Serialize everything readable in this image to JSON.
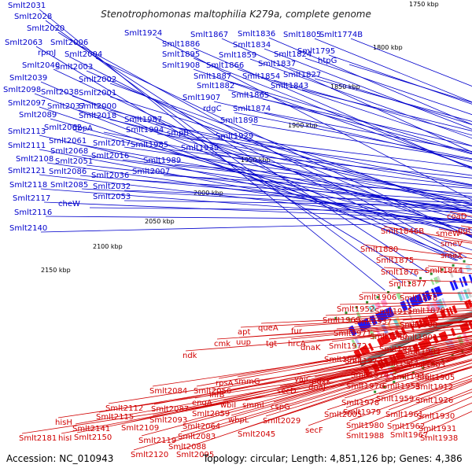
{
  "title": "Stenotrophomonas maltophilia K279a, complete genome",
  "footer": {
    "accession": "Accession: NC_010943",
    "stats": "Topology: circular; Length: 4,851,126 bp; Genes: 4,386"
  },
  "colors": {
    "forward_label": "#0000cc",
    "reverse_label": "#d00000",
    "forward_feature": "#1a1aff",
    "reverse_feature": "#ee1111",
    "backbone": "#7a7a7a",
    "tick_marker": "#2a8a2a"
  },
  "ticks": [
    "1750 kbp",
    "1800 kbp",
    "1850 kbp",
    "1900 kbp",
    "1950 kbp",
    "2000 kbp",
    "2050 kbp",
    "2100 kbp",
    "2150 kbp"
  ],
  "top_labels": [
    "Smlt2031",
    "Smlt2028",
    "Smlt2020",
    "Smlt2063",
    "Smlt2006",
    "rpmJ",
    "Smlt2004",
    "Smlt2040",
    "Smlt2003",
    "Smlt2039",
    "Smlt2002",
    "Smlt2098",
    "Smlt2038",
    "Smlt2001",
    "Smlt2097",
    "Smlt2037",
    "Smlt2000",
    "Smlt2089",
    "Smlt2018",
    "Smlt2062",
    "dbpA",
    "Smlt2113",
    "Smlt2061",
    "Smlt2017",
    "Smlt2111",
    "Smlt2068",
    "Smlt2016",
    "Smlt2108",
    "Smlt2051",
    "Smlt2121",
    "Smlt2086",
    "Smlt2036",
    "Smlt2118",
    "Smlt2085",
    "Smlt2032",
    "Smlt2117",
    "cheW",
    "Smlt2053",
    "Smlt2116",
    "Smlt2140",
    "Smlt1924",
    "Smlt1867",
    "Smlt1836",
    "Smlt1805",
    "Smlt1774B",
    "Smlt1886",
    "Smlt1834",
    "Smlt1895",
    "Smlt1859",
    "Smlt1824",
    "Smlt1795",
    "Smlt1908",
    "Smlt1866",
    "Smlt1837",
    "htpG",
    "Smlt1887",
    "Smlt1854",
    "Smlt1827",
    "Smlt1882",
    "Smlt1843",
    "Smlt1907",
    "Smlt1865",
    "rdgC",
    "Smlt1874",
    "Smlt1898",
    "Smlt1987",
    "Smlt1994",
    "smpB",
    "Smlt1985",
    "Smlt1929",
    "Smlt1939",
    "Smlt1989",
    "Smlt2007"
  ],
  "bottom_labels": [
    "coaD",
    "ggt",
    "Smlt1846B",
    "smeW",
    "smeV",
    "smeX",
    "Smlt1880",
    "Smlt1875",
    "Smlt1844",
    "Smlt1876",
    "Smlt1877",
    "Smlt1906",
    "Smlt1878",
    "Smlt1952",
    "Smlt1879",
    "Smlt1911",
    "Smlt1969",
    "Smlt1937",
    "Smlt1900",
    "Smlt1971",
    "Smlt1940",
    "Smlt1901",
    "Smlt1972",
    "Smlt1941",
    "Smlt1902",
    "fur",
    "hrcA",
    "Smlt1973",
    "Smlt1944",
    "Smlt1903",
    "apt",
    "queA",
    "Smlt1991",
    "Smlt1974",
    "Smlt1905",
    "uup",
    "tgt",
    "dnaK",
    "Smlt1946",
    "cmk",
    "Smlt1976",
    "Smlt1953",
    "Smlt1912",
    "ndk",
    "rpsA",
    "smmG",
    "yajC",
    "dnaJ",
    "Smlt1978",
    "Smlt1959",
    "Smlt1926",
    "ihfB",
    "secD",
    "pdxK",
    "engA",
    "wbiI",
    "smmI",
    "cspG",
    "Smlt2005",
    "Smlt1979",
    "Smlt1961",
    "Smlt1930",
    "Smlt2084",
    "Smlt2056",
    "wbpL",
    "Smlt2029",
    "Smlt1980",
    "Smlt1962",
    "Smlt1931",
    "Smlt2112",
    "Smlt2087",
    "Smlt2059",
    "secF",
    "Smlt1988",
    "Smlt1967",
    "Smlt1938",
    "hisH",
    "Smlt2115",
    "Smlt2093",
    "Smlt2064",
    "Smlt2045",
    "Smlt2141",
    "Smlt2109",
    "Smlt2083",
    "Smlt2181",
    "hisI",
    "Smlt2150",
    "Smlt2119",
    "Smlt2088",
    "Smlt2120",
    "Smlt2095"
  ]
}
